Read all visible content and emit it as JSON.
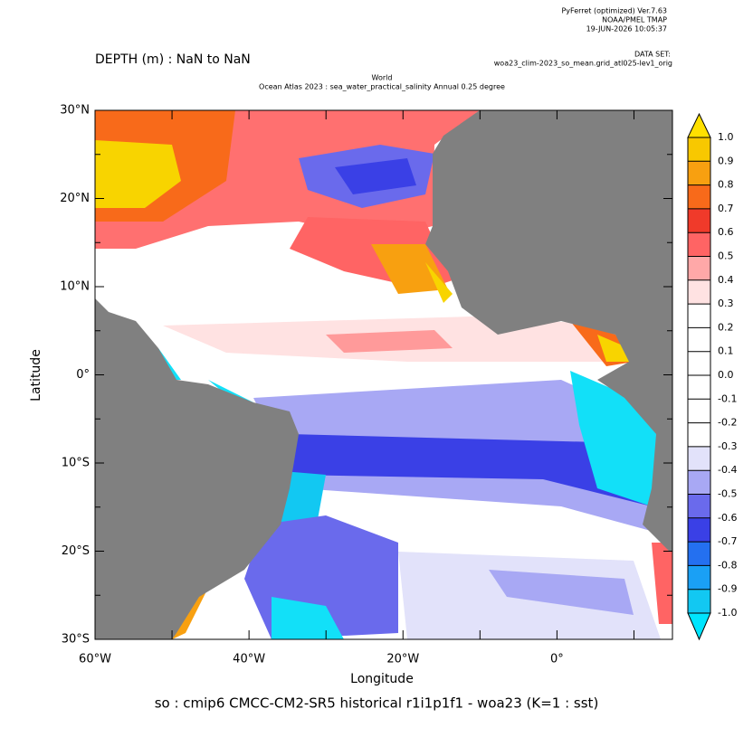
{
  "header": {
    "software": [
      "PyFerret (optimized) Ver.7.63",
      "NOAA/PMEL TMAP",
      "19-JUN-2026 10:05:37"
    ],
    "dataset_label": "DATA SET:",
    "dataset": "woa23_clim-2023_so_mean.grid_atl025-lev1_orig",
    "depth": "DEPTH (m) : NaN to NaN"
  },
  "chart_data": {
    "type": "map",
    "title": [
      "World",
      "Ocean Atlas 2023 : sea_water_practical_salinity Annual  0.25 degree"
    ],
    "x_label": "Longitude",
    "y_label": "Latitude",
    "caption": "so : cmip6 CMCC-CM2-SR5 historical r1i1p1f1 - woa23  (K=1 : sst)",
    "xlim": [
      -60,
      15
    ],
    "ylim": [
      -30,
      30
    ],
    "xticks": [
      {
        "value": -60,
        "label": "60°W"
      },
      {
        "value": -40,
        "label": "40°W"
      },
      {
        "value": -20,
        "label": "20°W"
      },
      {
        "value": 0,
        "label": "0°"
      }
    ],
    "xminor": [
      -50,
      -30,
      -10,
      10
    ],
    "yticks": [
      {
        "value": 30,
        "label": "30°N"
      },
      {
        "value": 20,
        "label": "20°N"
      },
      {
        "value": 10,
        "label": "10°N"
      },
      {
        "value": 0,
        "label": "0°"
      },
      {
        "value": -10,
        "label": "10°S"
      },
      {
        "value": -20,
        "label": "20°S"
      },
      {
        "value": -30,
        "label": "30°S"
      }
    ],
    "yminor": [
      25,
      15,
      5,
      -5,
      -15,
      -25
    ],
    "colorbar": {
      "levels": [
        {
          "value": 1,
          "label": "1.0"
        },
        0.9,
        0.8,
        0.7,
        0.6,
        0.5,
        0.4,
        0.3,
        0.2,
        0.1,
        {
          "value": 0,
          "label": "0.0"
        },
        -0.1,
        -0.2,
        -0.3,
        -0.4,
        -0.5,
        -0.6,
        -0.7,
        -0.8,
        -0.9,
        {
          "value": -1,
          "label": "-1.0"
        }
      ],
      "colors": [
        "#f8c800",
        "#f8a010",
        "#f86a1a",
        "#f03a2a",
        "#ff6464",
        "#ffa8a8",
        "#ffe2e2",
        "#ffffff",
        "#ffffff",
        "#ffffff",
        "#ffffff",
        "#ffffff",
        "#ffffff",
        "#e2e2fa",
        "#a8a8f4",
        "#6a6aec",
        "#3a40e6",
        "#2470f0",
        "#1aa0f5",
        "#12c8f2"
      ],
      "over_color": "#ffe000",
      "under_color": "#00e5ff"
    }
  }
}
